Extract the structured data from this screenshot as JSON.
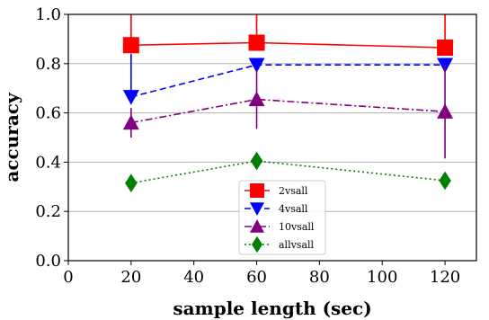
{
  "chart_data": {
    "type": "line",
    "xlabel": "sample length (sec)",
    "ylabel": "accuracy",
    "xlim": [
      0,
      130
    ],
    "ylim": [
      0.0,
      1.0
    ],
    "x_ticks": [
      0,
      20,
      40,
      60,
      80,
      100,
      120
    ],
    "x_tick_labels": [
      "0",
      "20",
      "40",
      "60",
      "80",
      "100",
      "120"
    ],
    "y_ticks": [
      0.0,
      0.2,
      0.4,
      0.6,
      0.8,
      1.0
    ],
    "y_tick_labels": [
      "0.0",
      "0.2",
      "0.4",
      "0.6",
      "0.8",
      "1.0"
    ],
    "grid": "horizontal",
    "legend_position": "lower-center",
    "x": [
      20,
      60,
      120
    ],
    "series": [
      {
        "name": "2vsall",
        "color": "#ff0000",
        "marker": "square",
        "dash": "solid",
        "values": [
          0.875,
          0.885,
          0.865
        ],
        "err_low": [
          0.875,
          0.885,
          0.865
        ],
        "err_high": [
          1.0,
          1.0,
          1.0
        ]
      },
      {
        "name": "4vsall",
        "color": "#0000ff",
        "marker": "triangle-down",
        "dash": "dashed",
        "values": [
          0.665,
          0.795,
          0.795
        ],
        "err_low": [
          0.665,
          0.795,
          0.795
        ],
        "err_high": [
          0.84,
          0.815,
          0.815
        ]
      },
      {
        "name": "10vsall",
        "color": "#800080",
        "marker": "triangle-up",
        "dash": "dashdot",
        "values": [
          0.56,
          0.655,
          0.605
        ],
        "err_low": [
          0.5,
          0.535,
          0.415
        ],
        "err_high": [
          0.62,
          0.775,
          0.795
        ]
      },
      {
        "name": "allvsall",
        "color": "#008000",
        "marker": "diamond",
        "dash": "dotted",
        "values": [
          0.315,
          0.405,
          0.325
        ],
        "err_low": [
          0.315,
          0.405,
          0.325
        ],
        "err_high": [
          0.315,
          0.405,
          0.325
        ]
      }
    ]
  }
}
